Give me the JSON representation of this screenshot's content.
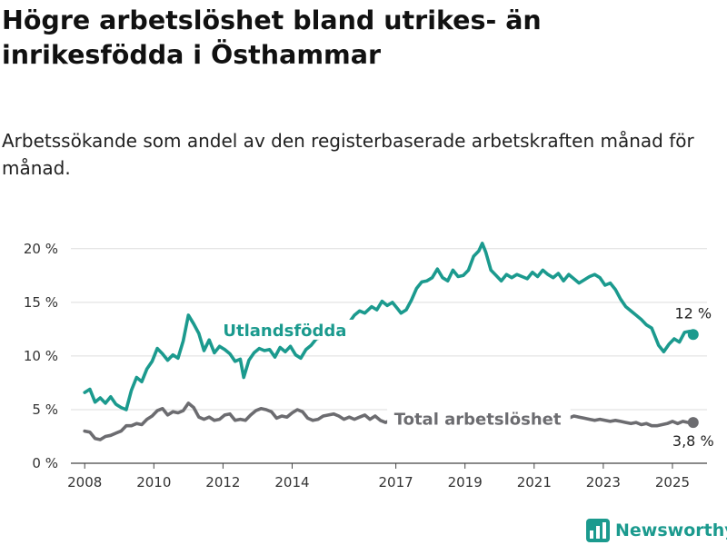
{
  "chart_data": {
    "type": "line",
    "title": "Högre arbetslöshet bland utrikes- än inrikesfödda i Östhammar",
    "subtitle": "Arbetssökande som andel av den registerbaserade arbetskraften månad för månad.",
    "xlabel": "",
    "ylabel": "",
    "xlim": [
      2007.6,
      2026.0
    ],
    "ylim": [
      0,
      21
    ],
    "y_ticks": [
      {
        "value": 0,
        "label": "0 %"
      },
      {
        "value": 5,
        "label": "5 %"
      },
      {
        "value": 10,
        "label": "10 %"
      },
      {
        "value": 15,
        "label": "15 %"
      },
      {
        "value": 20,
        "label": "20 %"
      }
    ],
    "x_ticks": [
      {
        "value": 2008,
        "label": "2008"
      },
      {
        "value": 2010,
        "label": "2010"
      },
      {
        "value": 2012,
        "label": "2012"
      },
      {
        "value": 2014,
        "label": "2014"
      },
      {
        "value": 2017,
        "label": "2017"
      },
      {
        "value": 2019,
        "label": "2019"
      },
      {
        "value": 2021,
        "label": "2021"
      },
      {
        "value": 2023,
        "label": "2023"
      },
      {
        "value": 2025,
        "label": "2025"
      }
    ],
    "grid": "horizontal",
    "legend": "inline labels",
    "series": [
      {
        "name": "Utlandsfödda",
        "color": "#1b9a8e",
        "end_label": "12 %",
        "points": [
          [
            2008.0,
            6.6
          ],
          [
            2008.15,
            6.9
          ],
          [
            2008.3,
            5.7
          ],
          [
            2008.45,
            6.1
          ],
          [
            2008.6,
            5.6
          ],
          [
            2008.75,
            6.2
          ],
          [
            2008.9,
            5.5
          ],
          [
            2009.05,
            5.2
          ],
          [
            2009.2,
            5.0
          ],
          [
            2009.35,
            6.8
          ],
          [
            2009.5,
            8.0
          ],
          [
            2009.65,
            7.6
          ],
          [
            2009.8,
            8.8
          ],
          [
            2009.95,
            9.5
          ],
          [
            2010.1,
            10.7
          ],
          [
            2010.25,
            10.2
          ],
          [
            2010.4,
            9.6
          ],
          [
            2010.55,
            10.1
          ],
          [
            2010.7,
            9.8
          ],
          [
            2010.85,
            11.4
          ],
          [
            2011.0,
            13.8
          ],
          [
            2011.15,
            13.0
          ],
          [
            2011.3,
            12.1
          ],
          [
            2011.45,
            10.5
          ],
          [
            2011.6,
            11.5
          ],
          [
            2011.75,
            10.3
          ],
          [
            2011.9,
            10.9
          ],
          [
            2012.05,
            10.6
          ],
          [
            2012.2,
            10.2
          ],
          [
            2012.35,
            9.5
          ],
          [
            2012.5,
            9.7
          ],
          [
            2012.6,
            8.0
          ],
          [
            2012.75,
            9.6
          ],
          [
            2012.9,
            10.3
          ],
          [
            2013.05,
            10.7
          ],
          [
            2013.2,
            10.5
          ],
          [
            2013.35,
            10.6
          ],
          [
            2013.5,
            9.9
          ],
          [
            2013.65,
            10.8
          ],
          [
            2013.8,
            10.4
          ],
          [
            2013.95,
            10.9
          ],
          [
            2014.1,
            10.1
          ],
          [
            2014.25,
            9.8
          ],
          [
            2014.4,
            10.6
          ],
          [
            2014.55,
            11.0
          ],
          [
            2014.7,
            11.6
          ],
          [
            2015.0,
            11.9
          ],
          [
            2015.3,
            12.4
          ],
          [
            2015.6,
            12.9
          ],
          [
            2015.8,
            13.8
          ],
          [
            2015.95,
            14.2
          ],
          [
            2016.1,
            14.0
          ],
          [
            2016.3,
            14.6
          ],
          [
            2016.45,
            14.3
          ],
          [
            2016.6,
            15.1
          ],
          [
            2016.75,
            14.7
          ],
          [
            2016.9,
            15.0
          ],
          [
            2017.05,
            14.4
          ],
          [
            2017.15,
            14.0
          ],
          [
            2017.3,
            14.3
          ],
          [
            2017.45,
            15.2
          ],
          [
            2017.6,
            16.3
          ],
          [
            2017.75,
            16.9
          ],
          [
            2017.9,
            17.0
          ],
          [
            2018.05,
            17.3
          ],
          [
            2018.2,
            18.1
          ],
          [
            2018.35,
            17.3
          ],
          [
            2018.5,
            17.0
          ],
          [
            2018.65,
            18.0
          ],
          [
            2018.8,
            17.4
          ],
          [
            2018.95,
            17.5
          ],
          [
            2019.1,
            18.0
          ],
          [
            2019.25,
            19.3
          ],
          [
            2019.4,
            19.8
          ],
          [
            2019.5,
            20.5
          ],
          [
            2019.6,
            19.7
          ],
          [
            2019.75,
            18.0
          ],
          [
            2019.9,
            17.5
          ],
          [
            2020.05,
            17.0
          ],
          [
            2020.2,
            17.6
          ],
          [
            2020.35,
            17.3
          ],
          [
            2020.5,
            17.6
          ],
          [
            2020.65,
            17.4
          ],
          [
            2020.8,
            17.2
          ],
          [
            2020.95,
            17.8
          ],
          [
            2021.1,
            17.4
          ],
          [
            2021.25,
            18.0
          ],
          [
            2021.4,
            17.6
          ],
          [
            2021.55,
            17.3
          ],
          [
            2021.7,
            17.7
          ],
          [
            2021.85,
            17.0
          ],
          [
            2022.0,
            17.6
          ],
          [
            2022.15,
            17.2
          ],
          [
            2022.3,
            16.8
          ],
          [
            2022.45,
            17.1
          ],
          [
            2022.6,
            17.4
          ],
          [
            2022.75,
            17.6
          ],
          [
            2022.9,
            17.3
          ],
          [
            2023.05,
            16.6
          ],
          [
            2023.2,
            16.8
          ],
          [
            2023.35,
            16.2
          ],
          [
            2023.5,
            15.3
          ],
          [
            2023.65,
            14.6
          ],
          [
            2023.8,
            14.2
          ],
          [
            2023.95,
            13.8
          ],
          [
            2024.1,
            13.4
          ],
          [
            2024.25,
            12.9
          ],
          [
            2024.4,
            12.6
          ],
          [
            2024.5,
            11.8
          ],
          [
            2024.6,
            11.0
          ],
          [
            2024.75,
            10.4
          ],
          [
            2024.9,
            11.1
          ],
          [
            2025.05,
            11.6
          ],
          [
            2025.2,
            11.3
          ],
          [
            2025.35,
            12.2
          ],
          [
            2025.5,
            12.3
          ],
          [
            2025.6,
            12.0
          ]
        ]
      },
      {
        "name": "Total arbetslöshet",
        "color": "#6c6c70",
        "end_label": "3,8 %",
        "points": [
          [
            2008.0,
            3.0
          ],
          [
            2008.15,
            2.9
          ],
          [
            2008.3,
            2.3
          ],
          [
            2008.45,
            2.2
          ],
          [
            2008.6,
            2.5
          ],
          [
            2008.75,
            2.6
          ],
          [
            2008.9,
            2.8
          ],
          [
            2009.05,
            3.0
          ],
          [
            2009.2,
            3.5
          ],
          [
            2009.35,
            3.5
          ],
          [
            2009.5,
            3.7
          ],
          [
            2009.65,
            3.6
          ],
          [
            2009.8,
            4.1
          ],
          [
            2009.95,
            4.4
          ],
          [
            2010.1,
            4.9
          ],
          [
            2010.25,
            5.1
          ],
          [
            2010.4,
            4.5
          ],
          [
            2010.55,
            4.8
          ],
          [
            2010.7,
            4.7
          ],
          [
            2010.85,
            4.9
          ],
          [
            2011.0,
            5.6
          ],
          [
            2011.15,
            5.2
          ],
          [
            2011.3,
            4.3
          ],
          [
            2011.45,
            4.1
          ],
          [
            2011.6,
            4.3
          ],
          [
            2011.75,
            4.0
          ],
          [
            2011.9,
            4.1
          ],
          [
            2012.05,
            4.5
          ],
          [
            2012.2,
            4.6
          ],
          [
            2012.35,
            4.0
          ],
          [
            2012.5,
            4.1
          ],
          [
            2012.65,
            4.0
          ],
          [
            2012.8,
            4.5
          ],
          [
            2012.95,
            4.9
          ],
          [
            2013.1,
            5.1
          ],
          [
            2013.25,
            5.0
          ],
          [
            2013.4,
            4.8
          ],
          [
            2013.55,
            4.2
          ],
          [
            2013.7,
            4.4
          ],
          [
            2013.85,
            4.3
          ],
          [
            2014.0,
            4.7
          ],
          [
            2014.15,
            5.0
          ],
          [
            2014.3,
            4.8
          ],
          [
            2014.45,
            4.2
          ],
          [
            2014.6,
            4.0
          ],
          [
            2014.75,
            4.1
          ],
          [
            2014.9,
            4.4
          ],
          [
            2015.05,
            4.5
          ],
          [
            2015.2,
            4.6
          ],
          [
            2015.35,
            4.4
          ],
          [
            2015.5,
            4.1
          ],
          [
            2015.65,
            4.3
          ],
          [
            2015.8,
            4.1
          ],
          [
            2015.95,
            4.3
          ],
          [
            2016.1,
            4.5
          ],
          [
            2016.25,
            4.1
          ],
          [
            2016.4,
            4.4
          ],
          [
            2016.55,
            4.0
          ],
          [
            2016.7,
            3.8
          ],
          [
            2016.85,
            4.0
          ],
          [
            2017.0,
            4.2
          ],
          [
            2017.5,
            4.1
          ],
          [
            2018.0,
            4.2
          ],
          [
            2018.5,
            4.1
          ],
          [
            2019.0,
            4.2
          ],
          [
            2019.5,
            4.2
          ],
          [
            2020.0,
            4.3
          ],
          [
            2020.5,
            4.3
          ],
          [
            2021.0,
            4.3
          ],
          [
            2021.5,
            4.3
          ],
          [
            2022.0,
            4.2
          ],
          [
            2022.15,
            4.4
          ],
          [
            2022.3,
            4.3
          ],
          [
            2022.45,
            4.2
          ],
          [
            2022.6,
            4.1
          ],
          [
            2022.75,
            4.0
          ],
          [
            2022.9,
            4.1
          ],
          [
            2023.05,
            4.0
          ],
          [
            2023.2,
            3.9
          ],
          [
            2023.35,
            4.0
          ],
          [
            2023.5,
            3.9
          ],
          [
            2023.65,
            3.8
          ],
          [
            2023.8,
            3.7
          ],
          [
            2023.95,
            3.8
          ],
          [
            2024.1,
            3.6
          ],
          [
            2024.25,
            3.7
          ],
          [
            2024.4,
            3.5
          ],
          [
            2024.55,
            3.5
          ],
          [
            2024.7,
            3.6
          ],
          [
            2024.85,
            3.7
          ],
          [
            2025.0,
            3.9
          ],
          [
            2025.15,
            3.7
          ],
          [
            2025.3,
            3.9
          ],
          [
            2025.45,
            3.8
          ],
          [
            2025.6,
            3.8
          ]
        ]
      }
    ]
  },
  "brand": {
    "name": "Newsworthy",
    "color": "#1b9a8e"
  }
}
